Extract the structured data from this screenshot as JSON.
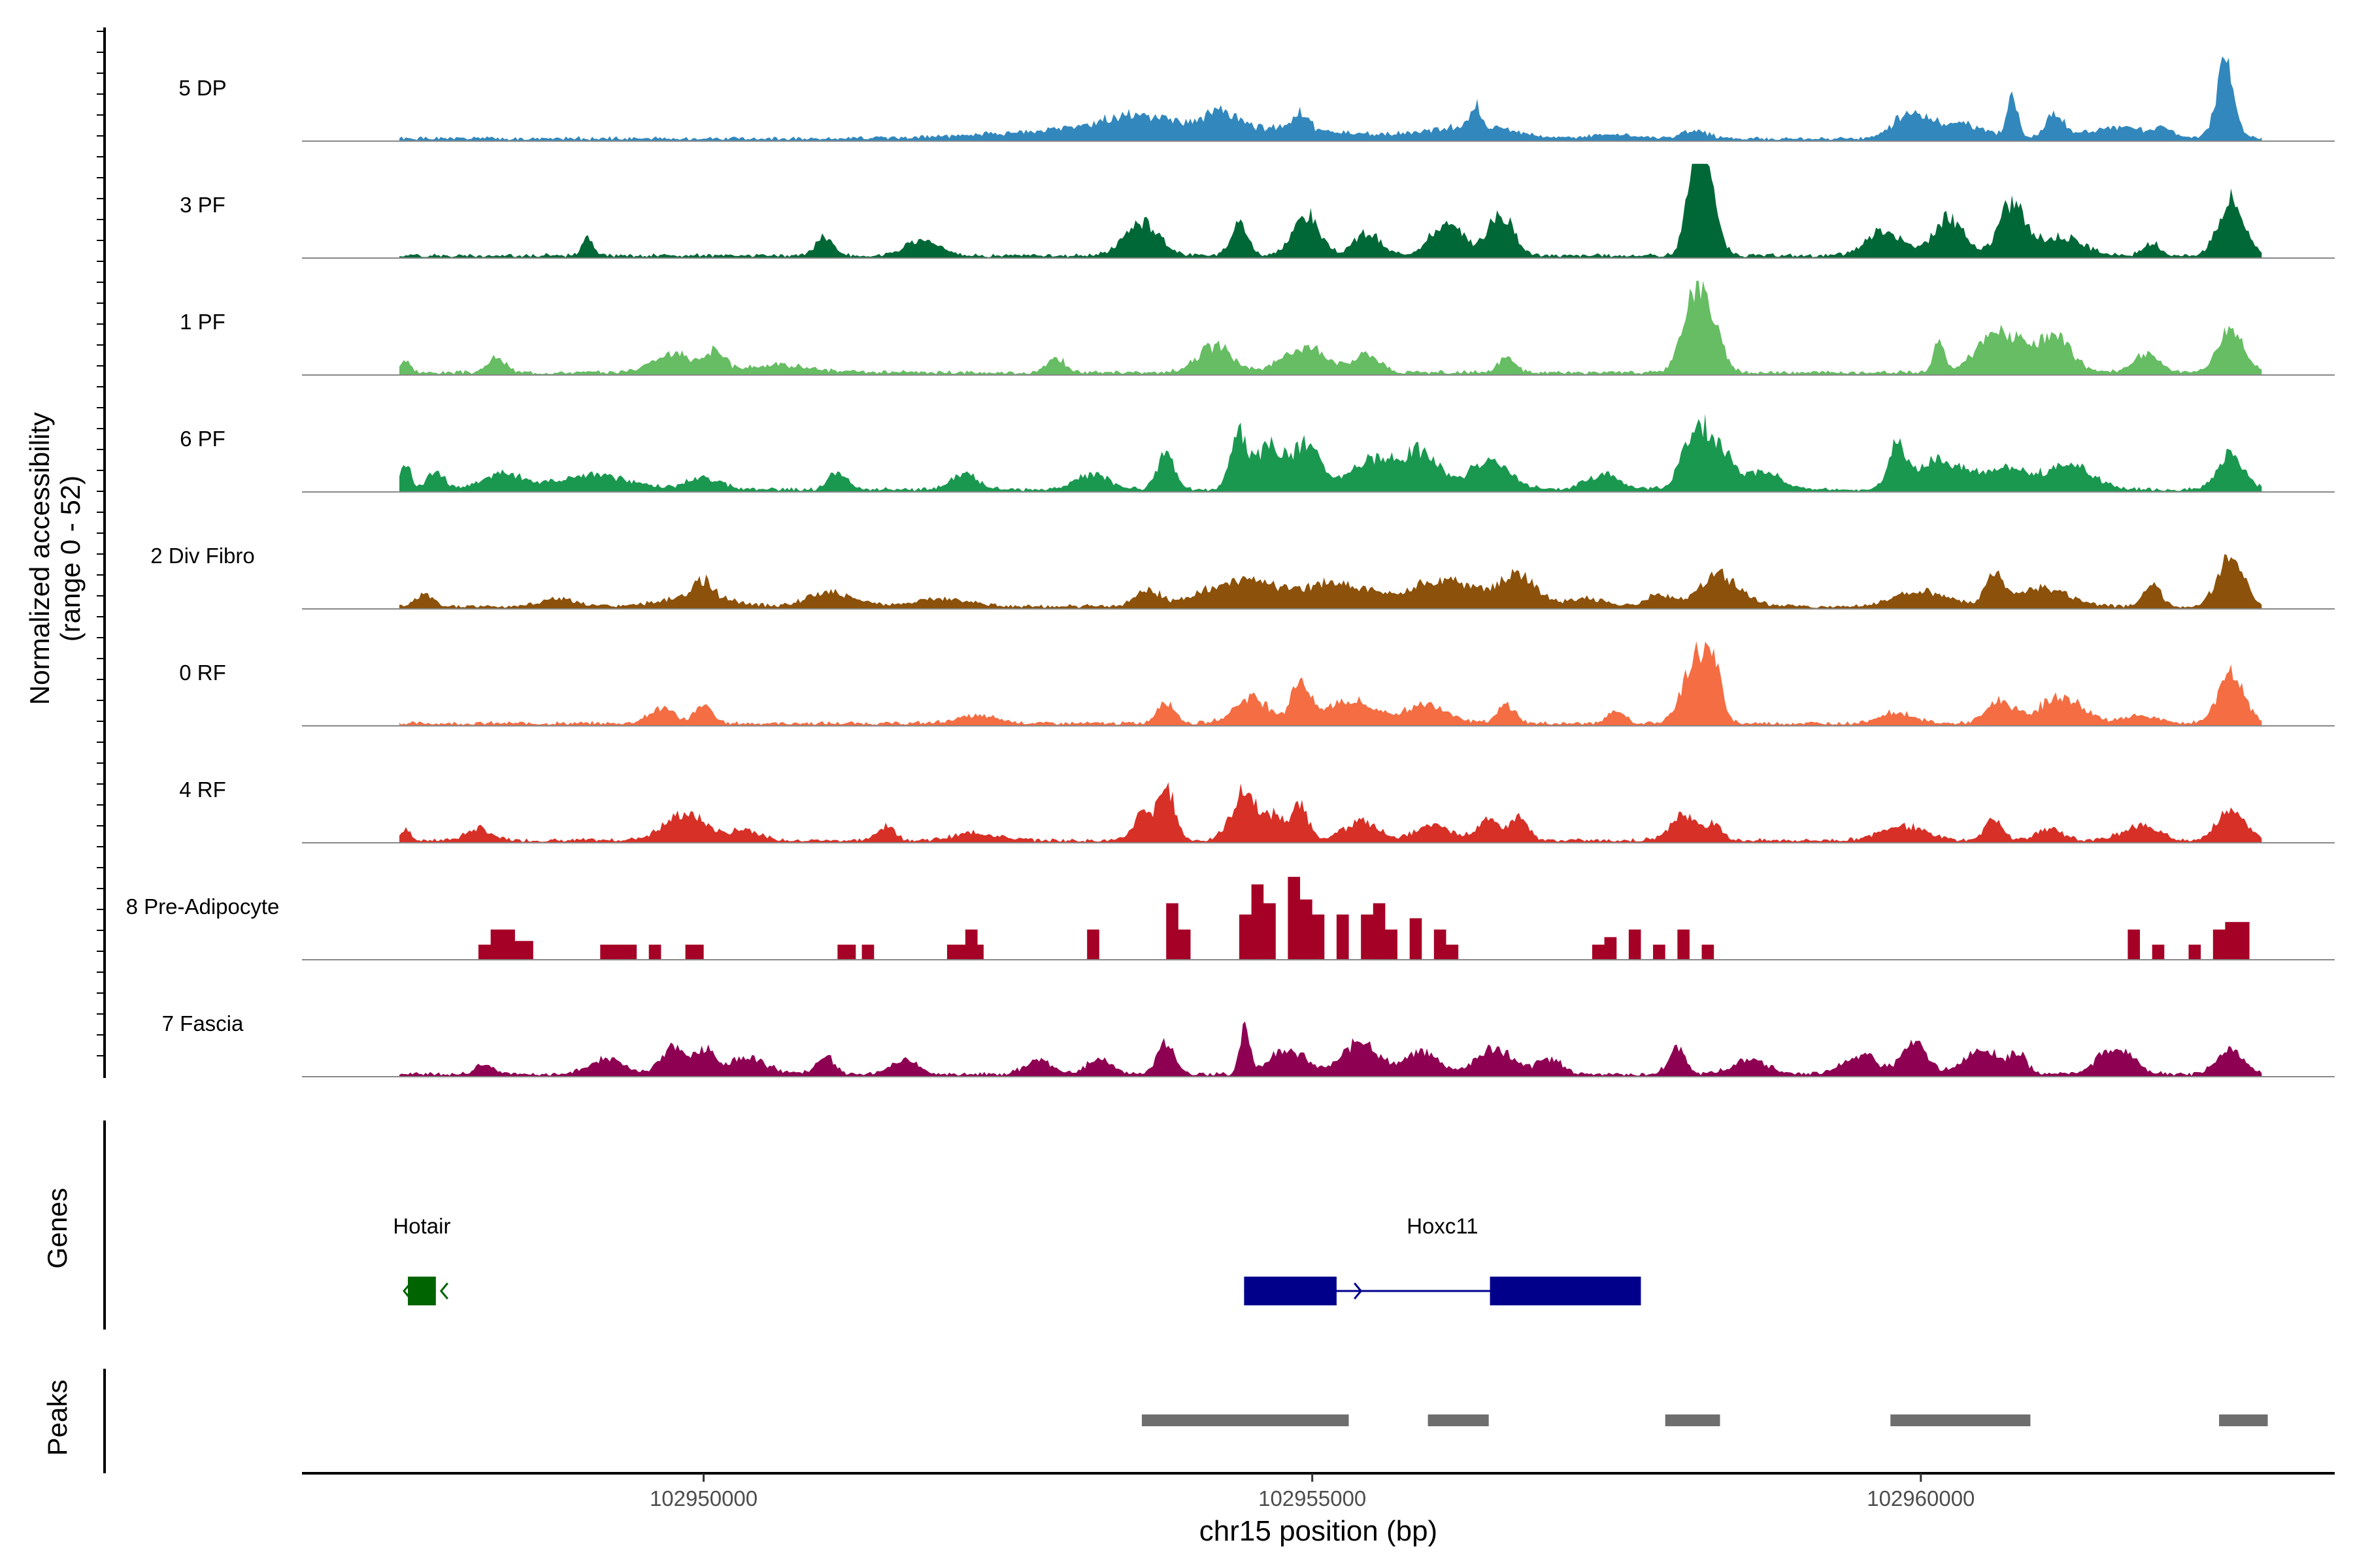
{
  "chart_data": {
    "type": "area",
    "title": "",
    "ylabel_line1": "Normalized accessibility",
    "ylabel_line2": "(range 0 - 52)",
    "xlabel": "chr15 position (bp)",
    "xlim": [
      102946700,
      102963400
    ],
    "xticks": [
      102950000,
      102955000,
      102960000
    ],
    "xtick_labels": [
      "102950000",
      "102955000",
      "102960000"
    ],
    "ylim": [
      0,
      52
    ],
    "data_start": 102947500,
    "data_end": 102962800,
    "tracks": [
      {
        "name": "5 DP",
        "color": "#3288BD",
        "peaks": [
          [
            102952500,
            102955200,
            8
          ],
          [
            102953200,
            102953800,
            5
          ],
          [
            102954100,
            102954400,
            9
          ],
          [
            102954800,
            102955000,
            10
          ],
          [
            102956300,
            102956400,
            12
          ],
          [
            102955800,
            102956800,
            6
          ],
          [
            102957200,
            102957800,
            2
          ],
          [
            102958000,
            102958300,
            4
          ],
          [
            102959700,
            102960100,
            12
          ],
          [
            102960000,
            102960600,
            8
          ],
          [
            102960700,
            102960800,
            24
          ],
          [
            102961000,
            102961200,
            12
          ],
          [
            102961200,
            102962000,
            6
          ],
          [
            102962400,
            102962600,
            40
          ],
          [
            102961900,
            102962100,
            4
          ]
        ]
      },
      {
        "name": "3 PF",
        "color": "#006837",
        "peaks": [
          [
            102949000,
            102949100,
            10
          ],
          [
            102950900,
            102951100,
            10
          ],
          [
            102951600,
            102952000,
            8
          ],
          [
            102953400,
            102953800,
            18
          ],
          [
            102954300,
            102954500,
            18
          ],
          [
            102954800,
            102955100,
            22
          ],
          [
            102955300,
            102955600,
            12
          ],
          [
            102955900,
            102956300,
            16
          ],
          [
            102956400,
            102956700,
            22
          ],
          [
            102958050,
            102958250,
            42
          ],
          [
            102958100,
            102958350,
            38
          ],
          [
            102959500,
            102959900,
            14
          ],
          [
            102960050,
            102960400,
            20
          ],
          [
            102960600,
            102960900,
            28
          ],
          [
            102960900,
            102961400,
            10
          ],
          [
            102961800,
            102962000,
            6
          ],
          [
            102962400,
            102962700,
            30
          ]
        ]
      },
      {
        "name": "1 PF",
        "color": "#66BD63",
        "peaks": [
          [
            102947500,
            102947600,
            6
          ],
          [
            102948200,
            102948400,
            8
          ],
          [
            102949500,
            102950000,
            10
          ],
          [
            102950000,
            102950200,
            10
          ],
          [
            102950200,
            102951000,
            4
          ],
          [
            102952800,
            102953000,
            8
          ],
          [
            102954000,
            102954400,
            14
          ],
          [
            102954700,
            102955200,
            14
          ],
          [
            102955300,
            102955600,
            10
          ],
          [
            102956500,
            102956700,
            8
          ],
          [
            102958000,
            102958250,
            40
          ],
          [
            102958150,
            102958400,
            25
          ],
          [
            102960100,
            102960200,
            18
          ],
          [
            102960400,
            102960900,
            22
          ],
          [
            102960900,
            102961300,
            18
          ],
          [
            102961700,
            102962000,
            10
          ],
          [
            102962400,
            102962700,
            24
          ]
        ]
      },
      {
        "name": "6 PF",
        "color": "#1A9850",
        "peaks": [
          [
            102947500,
            102947600,
            14
          ],
          [
            102947700,
            102947900,
            10
          ],
          [
            102948100,
            102948600,
            8
          ],
          [
            102948700,
            102949500,
            8
          ],
          [
            102949800,
            102950200,
            6
          ],
          [
            102951000,
            102951200,
            10
          ],
          [
            102952000,
            102952300,
            8
          ],
          [
            102953000,
            102953400,
            8
          ],
          [
            102953700,
            102953900,
            20
          ],
          [
            102954300,
            102954500,
            28
          ],
          [
            102954500,
            102954800,
            24
          ],
          [
            102954800,
            102955100,
            24
          ],
          [
            102955200,
            102955800,
            16
          ],
          [
            102955700,
            102956100,
            18
          ],
          [
            102956200,
            102956700,
            14
          ],
          [
            102957200,
            102957600,
            8
          ],
          [
            102958000,
            102958300,
            32
          ],
          [
            102958200,
            102958500,
            18
          ],
          [
            102958500,
            102958900,
            10
          ],
          [
            102959700,
            102959900,
            22
          ],
          [
            102959900,
            102960400,
            16
          ],
          [
            102960400,
            102961000,
            12
          ],
          [
            102961000,
            102961500,
            12
          ],
          [
            102962400,
            102962700,
            18
          ]
        ]
      },
      {
        "name": "2 Div Fibro",
        "color": "#8C510A",
        "peaks": [
          [
            102947600,
            102947800,
            6
          ],
          [
            102948600,
            102949000,
            4
          ],
          [
            102949900,
            102950100,
            8
          ],
          [
            102949600,
            102950300,
            6
          ],
          [
            102950800,
            102951300,
            8
          ],
          [
            102951600,
            102952300,
            4
          ],
          [
            102953500,
            102953800,
            8
          ],
          [
            102954000,
            102954800,
            14
          ],
          [
            102954800,
            102955600,
            12
          ],
          [
            102955700,
            102956500,
            14
          ],
          [
            102956500,
            102956900,
            16
          ],
          [
            102957000,
            102957500,
            4
          ],
          [
            102957700,
            102958000,
            6
          ],
          [
            102958100,
            102958600,
            16
          ],
          [
            102959700,
            102960300,
            8
          ],
          [
            102960500,
            102960700,
            16
          ],
          [
            102960700,
            102961300,
            10
          ],
          [
            102961800,
            102962000,
            12
          ],
          [
            102962400,
            102962700,
            26
          ]
        ]
      },
      {
        "name": "0 RF",
        "color": "#F46D43",
        "peaks": [
          [
            102949500,
            102949800,
            8
          ],
          [
            102949900,
            102950100,
            10
          ],
          [
            102952000,
            102952500,
            4
          ],
          [
            102953700,
            102953900,
            12
          ],
          [
            102954300,
            102954700,
            14
          ],
          [
            102954800,
            102955000,
            22
          ],
          [
            102955000,
            102955600,
            12
          ],
          [
            102955700,
            102956200,
            10
          ],
          [
            102956500,
            102956700,
            10
          ],
          [
            102957400,
            102957600,
            6
          ],
          [
            102958000,
            102958300,
            34
          ],
          [
            102958200,
            102958400,
            22
          ],
          [
            102959600,
            102960000,
            6
          ],
          [
            102960500,
            102960800,
            12
          ],
          [
            102960900,
            102961400,
            14
          ],
          [
            102961600,
            102962000,
            4
          ],
          [
            102962400,
            102962700,
            26
          ]
        ]
      },
      {
        "name": "4 RF",
        "color": "#D73027",
        "peaks": [
          [
            102947500,
            102947600,
            6
          ],
          [
            102948000,
            102948300,
            6
          ],
          [
            102949600,
            102950100,
            14
          ],
          [
            102950200,
            102950500,
            6
          ],
          [
            102951400,
            102951600,
            8
          ],
          [
            102952000,
            102952500,
            4
          ],
          [
            102953500,
            102953700,
            14
          ],
          [
            102953700,
            102953900,
            28
          ],
          [
            102954300,
            102954600,
            26
          ],
          [
            102954600,
            102954800,
            12
          ],
          [
            102954800,
            102955000,
            18
          ],
          [
            102955200,
            102955600,
            10
          ],
          [
            102955800,
            102956200,
            8
          ],
          [
            102956300,
            102956600,
            10
          ],
          [
            102956600,
            102956800,
            12
          ],
          [
            102957900,
            102958200,
            14
          ],
          [
            102958200,
            102958400,
            8
          ],
          [
            102959600,
            102960100,
            8
          ],
          [
            102960500,
            102960700,
            12
          ],
          [
            102960900,
            102961200,
            6
          ],
          [
            102961600,
            102962000,
            8
          ],
          [
            102962400,
            102962700,
            18
          ]
        ]
      },
      {
        "name": "8 Pre-Adipocyte",
        "color": "#A50026",
        "blocks": [
          [
            102948150,
            102948250,
            8
          ],
          [
            102948250,
            102948450,
            16
          ],
          [
            102948400,
            102948600,
            10
          ],
          [
            102949150,
            102949250,
            8
          ],
          [
            102949250,
            102949450,
            8
          ],
          [
            102949550,
            102949650,
            8
          ],
          [
            102949850,
            102950000,
            8
          ],
          [
            102951100,
            102951250,
            8
          ],
          [
            102951300,
            102951400,
            8
          ],
          [
            102952000,
            102952150,
            8
          ],
          [
            102952150,
            102952250,
            16
          ],
          [
            102952250,
            102952300,
            8
          ],
          [
            102953150,
            102953250,
            16
          ],
          [
            102953800,
            102953900,
            30
          ],
          [
            102953900,
            102954000,
            16
          ],
          [
            102954400,
            102954500,
            24
          ],
          [
            102954500,
            102954600,
            40
          ],
          [
            102954600,
            102954700,
            30
          ],
          [
            102954800,
            102954900,
            44
          ],
          [
            102954900,
            102955000,
            32
          ],
          [
            102955000,
            102955100,
            24
          ],
          [
            102955200,
            102955300,
            24
          ],
          [
            102955400,
            102955500,
            24
          ],
          [
            102955500,
            102955600,
            30
          ],
          [
            102955600,
            102955700,
            16
          ],
          [
            102955800,
            102955900,
            22
          ],
          [
            102956000,
            102956100,
            16
          ],
          [
            102956100,
            102956200,
            8
          ],
          [
            102957300,
            102957400,
            8
          ],
          [
            102957400,
            102957500,
            12
          ],
          [
            102957600,
            102957700,
            16
          ],
          [
            102957800,
            102957900,
            8
          ],
          [
            102958000,
            102958100,
            16
          ],
          [
            102958200,
            102958300,
            8
          ],
          [
            102961700,
            102961800,
            16
          ],
          [
            102961900,
            102962000,
            8
          ],
          [
            102962200,
            102962300,
            8
          ],
          [
            102962400,
            102962500,
            16
          ],
          [
            102962500,
            102962700,
            20
          ]
        ]
      },
      {
        "name": "7 Fascia",
        "color": "#8E0152",
        "peaks": [
          [
            102948100,
            102948300,
            6
          ],
          [
            102949000,
            102949400,
            8
          ],
          [
            102949600,
            102949900,
            14
          ],
          [
            102949900,
            102950100,
            12
          ],
          [
            102950100,
            102950600,
            8
          ],
          [
            102950900,
            102951100,
            10
          ],
          [
            102951500,
            102951800,
            8
          ],
          [
            102952600,
            102952900,
            8
          ],
          [
            102953100,
            102953400,
            8
          ],
          [
            102953700,
            102953900,
            18
          ],
          [
            102954400,
            102954500,
            24
          ],
          [
            102954600,
            102955000,
            14
          ],
          [
            102955200,
            102955600,
            18
          ],
          [
            102955700,
            102956100,
            12
          ],
          [
            102956300,
            102956700,
            14
          ],
          [
            102956800,
            102957100,
            8
          ],
          [
            102957900,
            102958100,
            14
          ],
          [
            102958400,
            102958800,
            8
          ],
          [
            102959300,
            102959700,
            10
          ],
          [
            102959800,
            102960100,
            16
          ],
          [
            102960300,
            102960700,
            14
          ],
          [
            102960700,
            102960900,
            10
          ],
          [
            102961400,
            102961800,
            14
          ],
          [
            102962400,
            102962700,
            14
          ]
        ]
      }
    ],
    "genes": [
      {
        "name": "Hotair",
        "strand": "-",
        "color": "#006400",
        "exons": [
          [
            102947570,
            102947800
          ]
        ],
        "start": 102947570,
        "end": 102947800
      },
      {
        "name": "Hoxc11",
        "strand": "+",
        "color": "#00008B",
        "exons": [
          [
            102954440,
            102955200
          ],
          [
            102956460,
            102957700
          ]
        ],
        "start": 102954440,
        "end": 102957700
      }
    ],
    "peaks_track": {
      "label": "Peaks",
      "color": "#6E6E6E",
      "regions": [
        [
          102953600,
          102955300
        ],
        [
          102955950,
          102956450
        ],
        [
          102957900,
          102958350
        ],
        [
          102959750,
          102960900
        ],
        [
          102962450,
          102962850
        ]
      ]
    },
    "genes_label": "Genes"
  }
}
